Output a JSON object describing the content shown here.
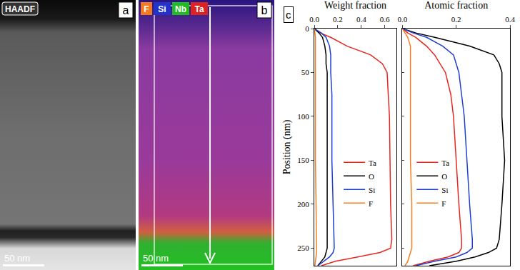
{
  "figure": {
    "panels": [
      {
        "letter": "a",
        "label": "HAADF",
        "scale_bar": "50 nm"
      },
      {
        "letter": "b",
        "elements": [
          {
            "name": "F",
            "color": "#f47a20"
          },
          {
            "name": "Si",
            "color": "#2233cc"
          },
          {
            "name": "Nb",
            "color": "#22bb22"
          },
          {
            "name": "Ta",
            "color": "#dd2222"
          }
        ],
        "scale_bar": "50 nm"
      }
    ],
    "chart_letter": "c"
  },
  "chart_data": [
    {
      "type": "line",
      "x_label": "Weight fraction",
      "y_label": "Position (nm)",
      "y": [
        0,
        5,
        10,
        20,
        30,
        40,
        50,
        75,
        100,
        150,
        200,
        240,
        250,
        255,
        260,
        265,
        270
      ],
      "series": [
        {
          "name": "Ta",
          "color": "#e8261f",
          "values": [
            0,
            0.05,
            0.14,
            0.28,
            0.48,
            0.58,
            0.62,
            0.63,
            0.64,
            0.645,
            0.65,
            0.66,
            0.65,
            0.56,
            0.38,
            0.18,
            0.06
          ]
        },
        {
          "name": "O",
          "color": "#000000",
          "values": [
            0,
            0.04,
            0.07,
            0.09,
            0.1,
            0.1,
            0.11,
            0.11,
            0.11,
            0.11,
            0.11,
            0.11,
            0.11,
            0.1,
            0.09,
            0.06,
            0.03
          ]
        },
        {
          "name": "Si",
          "color": "#1f3fd1",
          "values": [
            0,
            0.06,
            0.1,
            0.13,
            0.14,
            0.14,
            0.14,
            0.15,
            0.15,
            0.15,
            0.16,
            0.17,
            0.17,
            0.16,
            0.13,
            0.08,
            0.03
          ]
        },
        {
          "name": "F",
          "color": "#f57f20",
          "values": [
            0,
            0.005,
            0.01,
            0.01,
            0.01,
            0.01,
            0.01,
            0.01,
            0.01,
            0.01,
            0.015,
            0.02,
            0.02,
            0.02,
            0.015,
            0.01,
            0.005
          ]
        }
      ],
      "xlim": [
        0,
        0.7
      ],
      "xticks": [
        {
          "value": 0,
          "label": "0.0"
        },
        0.2,
        0.4,
        0.6
      ],
      "ylim": [
        0,
        270
      ],
      "yticks": [
        0,
        50,
        100,
        150,
        200,
        250
      ],
      "legend": "lower right",
      "grid": false
    },
    {
      "type": "line",
      "x_label": "Atomic fraction",
      "y": [
        0,
        5,
        10,
        20,
        30,
        40,
        50,
        75,
        100,
        150,
        200,
        240,
        250,
        255,
        260,
        265,
        270
      ],
      "series": [
        {
          "name": "Ta",
          "color": "#e8261f",
          "values": [
            0,
            0.02,
            0.05,
            0.09,
            0.12,
            0.14,
            0.16,
            0.18,
            0.19,
            0.2,
            0.21,
            0.22,
            0.22,
            0.21,
            0.17,
            0.1,
            0.04
          ]
        },
        {
          "name": "O",
          "color": "#000000",
          "values": [
            0,
            0.05,
            0.12,
            0.25,
            0.34,
            0.36,
            0.37,
            0.37,
            0.37,
            0.38,
            0.37,
            0.36,
            0.35,
            0.32,
            0.27,
            0.2,
            0.1
          ]
        },
        {
          "name": "Si",
          "color": "#1f3fd1",
          "values": [
            0,
            0.04,
            0.09,
            0.15,
            0.19,
            0.2,
            0.21,
            0.22,
            0.23,
            0.24,
            0.25,
            0.26,
            0.26,
            0.24,
            0.2,
            0.12,
            0.05
          ]
        },
        {
          "name": "F",
          "color": "#f57f20",
          "values": [
            0,
            0.01,
            0.02,
            0.03,
            0.03,
            0.03,
            0.03,
            0.03,
            0.03,
            0.03,
            0.035,
            0.035,
            0.035,
            0.03,
            0.025,
            0.02,
            0.01
          ]
        }
      ],
      "xlim": [
        0,
        0.4
      ],
      "xticks": [
        {
          "value": 0,
          "label": "0.0"
        },
        0.2,
        0.4
      ],
      "ylim": [
        0,
        270
      ],
      "yticks": [
        0,
        50,
        100,
        150,
        200,
        250
      ],
      "tick_labels": "x",
      "legend": "lower left",
      "grid": false
    }
  ]
}
